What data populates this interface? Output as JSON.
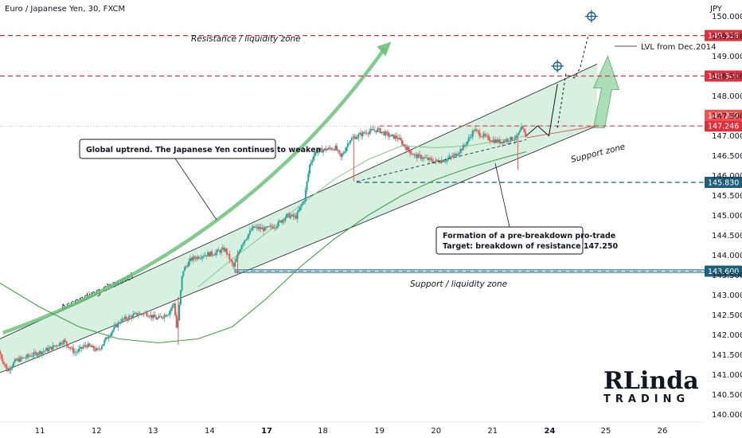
{
  "header": {
    "title": "Euro / Japanese Yen, 30, FXCM"
  },
  "colors": {
    "up": "#26a69a",
    "down": "#ef5350",
    "resistance": "#e0303e",
    "support": "#1f5f7a",
    "channel_fill": "#b7e4c7",
    "arrow_fill": "#8fd19e",
    "ma_line": "#43a047"
  },
  "chart_data": {
    "type": "candlestick",
    "currency_label": "JPY",
    "y_ticks": [
      "140.000",
      "140.500",
      "141.000",
      "141.500",
      "142.000",
      "142.500",
      "143.000",
      "143.500",
      "144.000",
      "144.500",
      "145.000",
      "145.500",
      "146.000",
      "146.500",
      "147.000",
      "147.500",
      "148.000",
      "148.500",
      "149.000",
      "149.500",
      "150.000"
    ],
    "ylim": [
      139.85,
      150.25
    ],
    "x_ticks": [
      {
        "label": "11",
        "x": 11,
        "bold": false
      },
      {
        "label": "12",
        "x": 12,
        "bold": false
      },
      {
        "label": "13",
        "x": 13,
        "bold": false
      },
      {
        "label": "14",
        "x": 14,
        "bold": false
      },
      {
        "label": "17",
        "x": 15,
        "bold": true
      },
      {
        "label": "18",
        "x": 16,
        "bold": false
      },
      {
        "label": "19",
        "x": 17,
        "bold": false
      },
      {
        "label": "20",
        "x": 18,
        "bold": false
      },
      {
        "label": "21",
        "x": 19,
        "bold": false
      },
      {
        "label": "24",
        "x": 20,
        "bold": true
      },
      {
        "label": "25",
        "x": 21,
        "bold": false
      },
      {
        "label": "26",
        "x": 22,
        "bold": false
      }
    ],
    "xlim": [
      10.3,
      22.75
    ],
    "price_path": [
      [
        10.3,
        141.6
      ],
      [
        10.45,
        141.1
      ],
      [
        10.6,
        141.35
      ],
      [
        10.8,
        141.45
      ],
      [
        11.0,
        141.55
      ],
      [
        11.2,
        141.65
      ],
      [
        11.45,
        141.85
      ],
      [
        11.65,
        141.55
      ],
      [
        11.85,
        141.75
      ],
      [
        12.05,
        141.6
      ],
      [
        12.25,
        142.0
      ],
      [
        12.45,
        142.35
      ],
      [
        12.7,
        142.5
      ],
      [
        12.9,
        142.55
      ],
      [
        13.1,
        142.4
      ],
      [
        13.3,
        142.55
      ],
      [
        13.4,
        142.8
      ],
      [
        13.45,
        142.1
      ],
      [
        13.55,
        143.6
      ],
      [
        13.7,
        143.9
      ],
      [
        13.9,
        144.0
      ],
      [
        14.1,
        144.05
      ],
      [
        14.3,
        144.15
      ],
      [
        14.45,
        143.7
      ],
      [
        14.6,
        144.3
      ],
      [
        14.8,
        144.7
      ],
      [
        15.0,
        144.65
      ],
      [
        15.2,
        144.75
      ],
      [
        15.4,
        145.0
      ],
      [
        15.55,
        144.95
      ],
      [
        15.7,
        145.4
      ],
      [
        15.8,
        146.3
      ],
      [
        15.9,
        146.6
      ],
      [
        16.05,
        146.65
      ],
      [
        16.25,
        146.7
      ],
      [
        16.35,
        146.45
      ],
      [
        16.5,
        146.9
      ],
      [
        16.65,
        147.0
      ],
      [
        16.8,
        147.1
      ],
      [
        17.0,
        147.15
      ],
      [
        17.2,
        147.0
      ],
      [
        17.35,
        146.95
      ],
      [
        17.5,
        146.7
      ],
      [
        17.65,
        146.5
      ],
      [
        17.8,
        146.45
      ],
      [
        18.0,
        146.35
      ],
      [
        18.2,
        146.4
      ],
      [
        18.35,
        146.5
      ],
      [
        18.5,
        146.7
      ],
      [
        18.6,
        146.9
      ],
      [
        18.7,
        147.15
      ],
      [
        18.85,
        147.0
      ],
      [
        19.0,
        146.9
      ],
      [
        19.15,
        146.85
      ],
      [
        19.3,
        146.9
      ],
      [
        19.45,
        146.95
      ],
      [
        19.55,
        147.2
      ],
      [
        19.6,
        147.0
      ]
    ],
    "forecast_path": [
      [
        19.6,
        147.0
      ],
      [
        19.8,
        147.25
      ],
      [
        20.0,
        147.0
      ],
      [
        20.15,
        148.3
      ]
    ],
    "forecast_dashed_path": [
      [
        20.15,
        147.2
      ],
      [
        20.3,
        148.55
      ],
      [
        20.45,
        148.45
      ],
      [
        20.55,
        148.7
      ],
      [
        20.7,
        149.55
      ]
    ],
    "targets": [
      [
        20.15,
        148.75
      ],
      [
        20.75,
        150.0
      ]
    ],
    "ma_slow": [
      [
        10.3,
        143.3
      ],
      [
        11.0,
        142.7
      ],
      [
        11.7,
        142.2
      ],
      [
        12.4,
        141.9
      ],
      [
        13.1,
        141.8
      ],
      [
        13.8,
        141.9
      ],
      [
        14.4,
        142.2
      ],
      [
        15.0,
        142.9
      ],
      [
        15.6,
        143.7
      ],
      [
        16.2,
        144.4
      ],
      [
        16.8,
        145.0
      ],
      [
        17.4,
        145.5
      ],
      [
        18.0,
        145.9
      ],
      [
        18.6,
        146.2
      ],
      [
        19.2,
        146.45
      ],
      [
        19.6,
        146.6
      ]
    ],
    "ma_fast": [
      [
        13.8,
        143.2
      ],
      [
        14.4,
        143.9
      ],
      [
        15.0,
        144.55
      ],
      [
        15.6,
        145.25
      ],
      [
        16.2,
        145.9
      ],
      [
        16.8,
        146.4
      ],
      [
        17.4,
        146.75
      ],
      [
        18.0,
        146.7
      ],
      [
        18.6,
        146.75
      ],
      [
        19.2,
        146.9
      ],
      [
        19.6,
        147.0
      ]
    ],
    "channel": {
      "upper": [
        [
          10.3,
          141.9
        ],
        [
          20.85,
          148.8
        ]
      ],
      "lower": [
        [
          10.3,
          141.05
        ],
        [
          20.85,
          147.25
        ]
      ],
      "label": "Ascending channel"
    },
    "levels": [
      {
        "value": 149.518,
        "label": "149.518",
        "style": "resistance",
        "x_start": 10.3
      },
      {
        "value": 148.5,
        "label": "148.500",
        "style": "resistance",
        "x_start": 10.3
      },
      {
        "value": 147.246,
        "label": "147.246",
        "style": "resistance",
        "x_start": 17.0
      },
      {
        "value": 145.83,
        "label": "145.830",
        "style": "support",
        "x_start": 16.6
      },
      {
        "value": 143.6,
        "label": "143.600",
        "style": "support",
        "x_start": 14.45
      }
    ],
    "current_price": {
      "value": 147.252,
      "label": "147.252"
    },
    "annotations": {
      "resistance_zone": "Resistance / liquidity zone",
      "support_liquidity_zone": "Support / liquidity zone",
      "support_zone": "Support zone",
      "lvl_dec2014": "LVL from Dec.2014",
      "note_uptrend": "Global uptrend. The Japanese Yen continues to weaken",
      "note_formation_1": "Formation of a pre-breakdown pro-trade",
      "note_formation_2": "Target: breakdown of resistance 147.250"
    }
  },
  "logo": {
    "big": "RLinda",
    "small": "TRADING"
  }
}
